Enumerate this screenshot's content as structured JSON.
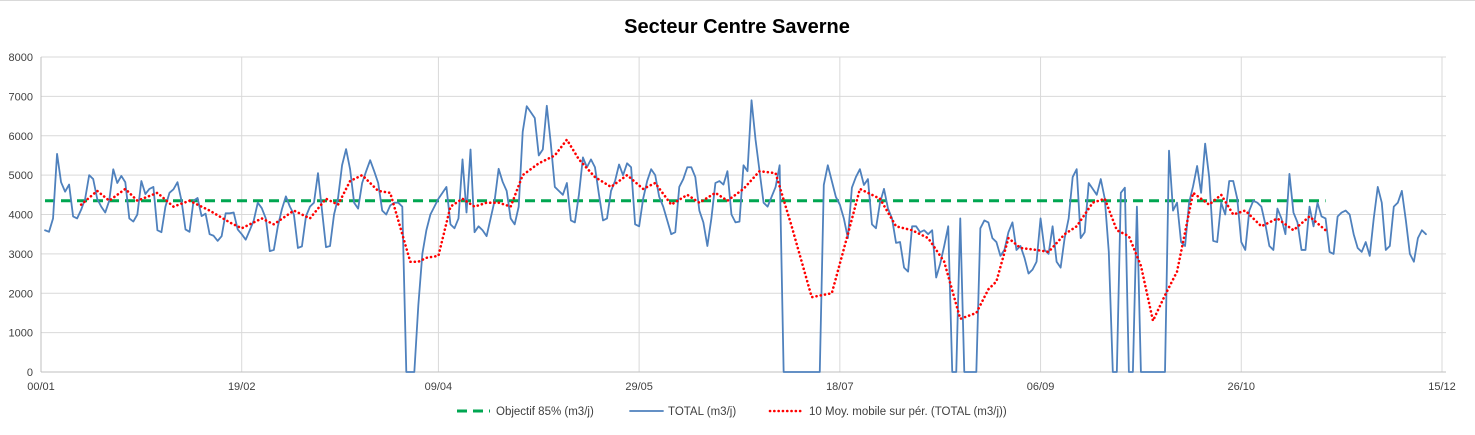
{
  "chart_data": {
    "type": "line",
    "title": "Secteur Centre Saverne",
    "xlabel": "",
    "ylabel": "",
    "ylim": [
      0,
      8000
    ],
    "yticks": [
      0,
      1000,
      2000,
      3000,
      4000,
      5000,
      6000,
      7000,
      8000
    ],
    "xlim_days": [
      0,
      350
    ],
    "xticks": [
      {
        "day": 0,
        "label": "00/01"
      },
      {
        "day": 50,
        "label": "19/02"
      },
      {
        "day": 99,
        "label": "09/04"
      },
      {
        "day": 149,
        "label": "29/05"
      },
      {
        "day": 199,
        "label": "18/07"
      },
      {
        "day": 249,
        "label": "06/09"
      },
      {
        "day": 299,
        "label": "26/10"
      },
      {
        "day": 349,
        "label": "15/12"
      }
    ],
    "grid": "vertical and horizontal",
    "legend_position": "bottom",
    "colors": {
      "objective": "#00a651",
      "total": "#4f81bd",
      "moving_avg": "#ff0000",
      "grid": "#d9d9d9",
      "axis": "#bfbfbf"
    },
    "series": [
      {
        "name": "Objectif 85% (m3/j)",
        "style": "dashed",
        "x": [
          1,
          320
        ],
        "values": [
          4350,
          4350
        ]
      },
      {
        "name": "TOTAL (m3/j)",
        "style": "solid",
        "x_start": 1,
        "x_step": 1,
        "values": [
          3600,
          3560,
          3900,
          5540,
          4820,
          4580,
          4760,
          3950,
          3900,
          4120,
          4400,
          5000,
          4900,
          4400,
          4200,
          4050,
          4350,
          5150,
          4800,
          4980,
          4820,
          3900,
          3820,
          4000,
          4850,
          4520,
          4650,
          4700,
          3600,
          3550,
          4200,
          4550,
          4640,
          4820,
          4350,
          3620,
          3560,
          4350,
          4420,
          3960,
          4020,
          3500,
          3460,
          3330,
          3450,
          4030,
          4030,
          4050,
          3620,
          3500,
          3360,
          3600,
          3850,
          4300,
          4160,
          3900,
          3070,
          3100,
          3700,
          4130,
          4460,
          4200,
          4000,
          3150,
          3190,
          3950,
          4200,
          4300,
          5050,
          4100,
          3170,
          3200,
          4000,
          4420,
          5250,
          5660,
          5150,
          4300,
          4150,
          4800,
          5100,
          5380,
          5100,
          4800,
          4100,
          4000,
          4230,
          4300,
          4300,
          4200,
          0,
          0,
          0,
          1700,
          3000,
          3600,
          4000,
          4200,
          4400,
          4550,
          4700,
          3750,
          3650,
          3900,
          5400,
          4050,
          5650,
          3550,
          3700,
          3600,
          3450,
          3900,
          4350,
          5160,
          4830,
          4600,
          3900,
          3750,
          4200,
          6100,
          6750,
          6600,
          6450,
          5500,
          5650,
          6760,
          5800,
          4700,
          4600,
          4500,
          4800,
          3850,
          3800,
          4500,
          5450,
          5200,
          5400,
          5200,
          4500,
          3850,
          3900,
          4600,
          4850,
          5270,
          5000,
          5300,
          5200,
          3750,
          3700,
          4400,
          4850,
          5150,
          5000,
          4450,
          4200,
          3850,
          3500,
          3550,
          4700,
          4900,
          5200,
          5200,
          4950,
          4100,
          3800,
          3200,
          3900,
          4800,
          4850,
          4760,
          5100,
          4000,
          3800,
          3820,
          5250,
          5100,
          6900,
          5900,
          5100,
          4300,
          4200,
          4450,
          4700,
          5250,
          0,
          0,
          0,
          0,
          0,
          0,
          0,
          0,
          0,
          0,
          4750,
          5250,
          4850,
          4450,
          4250,
          3900,
          3400,
          4680,
          4950,
          5150,
          4750,
          4900,
          3750,
          3650,
          4300,
          4650,
          4150,
          3900,
          3280,
          3300,
          2650,
          2550,
          3700,
          3700,
          3550,
          3600,
          3500,
          3600,
          2400,
          2750,
          3200,
          3700,
          0,
          0,
          3900,
          0,
          0,
          0,
          0,
          3650,
          3850,
          3800,
          3400,
          3300,
          2950,
          3100,
          3550,
          3800,
          3100,
          3200,
          2900,
          2500,
          2600,
          2800,
          3900,
          3100,
          3000,
          3700,
          2800,
          2650,
          3400,
          3900,
          4950,
          5150,
          3400,
          3550,
          4800,
          4650,
          4500,
          4900,
          4400,
          3050,
          0,
          0,
          4550,
          4680,
          0,
          0,
          4200,
          0,
          0,
          0,
          0,
          0,
          0,
          0,
          5620,
          4100,
          4300,
          3300,
          3200,
          4300,
          4720,
          5230,
          4550,
          5800,
          4950,
          3330,
          3300,
          4300,
          4000,
          4850,
          4850,
          4400,
          3300,
          3100,
          4100,
          4350,
          4300,
          4200,
          3750,
          3200,
          3100,
          4150,
          3900,
          3500,
          5030,
          4050,
          3800,
          3100,
          3100,
          4200,
          3700,
          4300,
          3950,
          3900,
          3050,
          3000,
          3950,
          4050,
          4100,
          4000,
          3500,
          3150,
          3050,
          3300,
          2950,
          3900,
          4700,
          4300,
          3100,
          3200,
          4200,
          4300,
          4600,
          3850,
          3000,
          2800,
          3400,
          3600,
          3500
        ]
      },
      {
        "name": "10 Moy. mobile sur pér. (TOTAL (m3/j))",
        "style": "dotted",
        "x": [
          10,
          14,
          17,
          21,
          24,
          29,
          33,
          37,
          42,
          47,
          50,
          55,
          58,
          63,
          67,
          71,
          74,
          77,
          80,
          84,
          87,
          90,
          92,
          94,
          96,
          99,
          102,
          105,
          108,
          111,
          114,
          117,
          120,
          124,
          128,
          131,
          134,
          138,
          142,
          146,
          150,
          153,
          157,
          161,
          164,
          168,
          171,
          175,
          179,
          183,
          187,
          192,
          197,
          201,
          204,
          209,
          213,
          217,
          221,
          225,
          229,
          233,
          236,
          238,
          241,
          244,
          248,
          251,
          255,
          258,
          262,
          265,
          268,
          271,
          274,
          277,
          280,
          283,
          287,
          291,
          294,
          297,
          300,
          304,
          308,
          312,
          316,
          320
        ],
        "values": [
          4250,
          4600,
          4350,
          4650,
          4350,
          4550,
          4200,
          4350,
          4100,
          3800,
          3650,
          3900,
          3750,
          4100,
          3900,
          4400,
          4250,
          4850,
          5000,
          4600,
          4550,
          3500,
          2800,
          2800,
          2900,
          2950,
          4200,
          4400,
          4200,
          4300,
          4300,
          4200,
          5000,
          5300,
          5500,
          5900,
          5400,
          4950,
          4700,
          5000,
          4650,
          4800,
          4250,
          4500,
          4300,
          4550,
          4350,
          4650,
          5100,
          5050,
          3700,
          1900,
          2000,
          3500,
          4650,
          4400,
          3700,
          3600,
          3400,
          2800,
          1350,
          1500,
          2100,
          2300,
          3400,
          3150,
          3100,
          3050,
          3500,
          3700,
          4300,
          4400,
          3600,
          3450,
          2700,
          1300,
          1950,
          2550,
          4550,
          4250,
          4500,
          4000,
          4100,
          3700,
          3900,
          3600,
          3950,
          3600
        ]
      }
    ]
  }
}
